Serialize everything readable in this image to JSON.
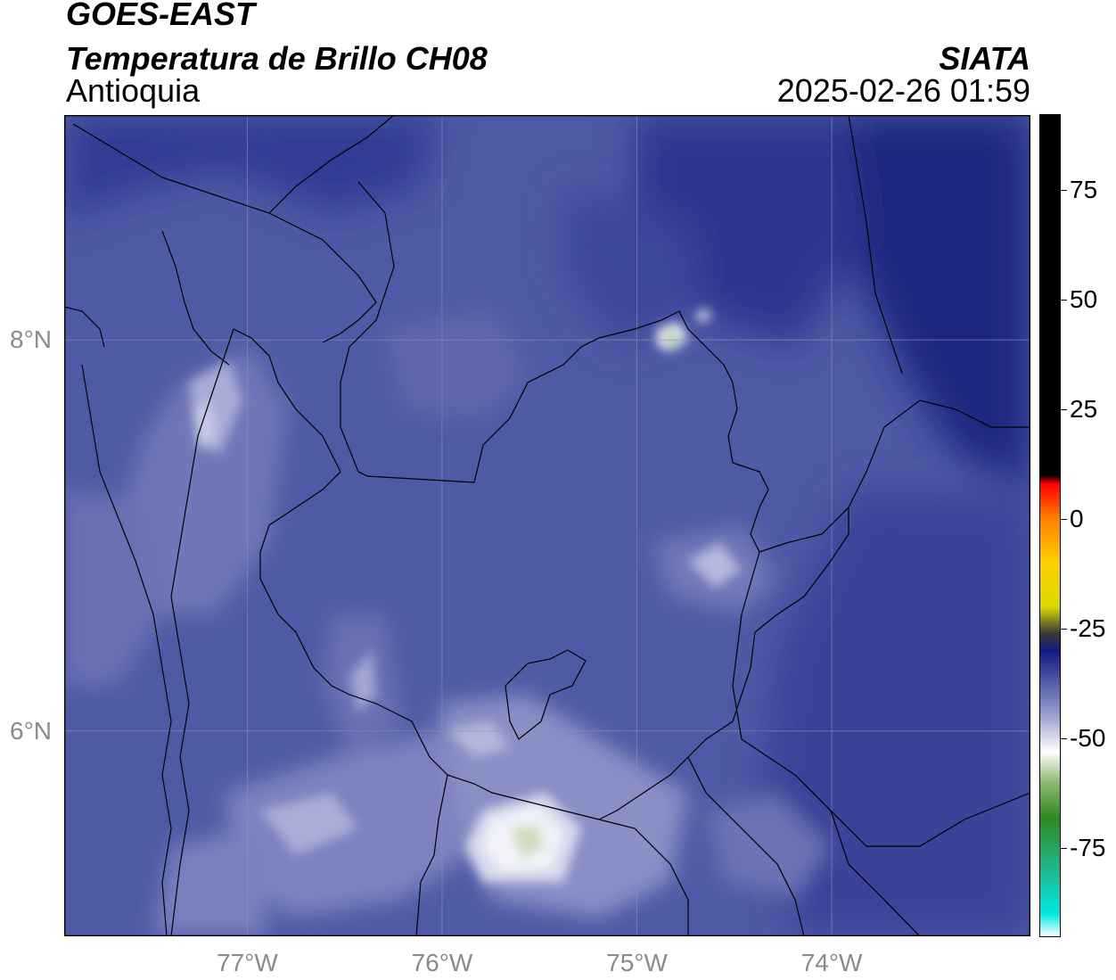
{
  "header": {
    "line1": "GOES-EAST",
    "line2": "Temperatura de Brillo CH08",
    "line3": "Antioquia",
    "org": "SIATA",
    "datetime": "2025-02-26 01:59"
  },
  "map": {
    "lon_range": [
      -77.94,
      -72.98
    ],
    "lat_range": [
      4.95,
      9.15
    ],
    "lon_ticks": [
      {
        "value": -77,
        "label": "77°W"
      },
      {
        "value": -76,
        "label": "76°W"
      },
      {
        "value": -75,
        "label": "75°W"
      },
      {
        "value": -74,
        "label": "74°W"
      }
    ],
    "lat_ticks": [
      {
        "value": 8,
        "label": "8°N"
      },
      {
        "value": 6,
        "label": "6°N"
      }
    ],
    "gridlines": true,
    "background_color": "#4f5aa6"
  },
  "colorbar": {
    "range": [
      -95,
      92
    ],
    "ticks": [
      {
        "value": 75,
        "label": "75"
      },
      {
        "value": 50,
        "label": "50"
      },
      {
        "value": 25,
        "label": "25"
      },
      {
        "value": 0,
        "label": "0"
      },
      {
        "value": -25,
        "label": "-25"
      },
      {
        "value": -50,
        "label": "-50"
      },
      {
        "value": -75,
        "label": "-75"
      }
    ],
    "stops": [
      {
        "value": -95,
        "color": "#ffffff"
      },
      {
        "value": -90,
        "color": "#00e8e0"
      },
      {
        "value": -80,
        "color": "#20b890"
      },
      {
        "value": -68,
        "color": "#2e8a20"
      },
      {
        "value": -60,
        "color": "#8fb870"
      },
      {
        "value": -53,
        "color": "#ffffff"
      },
      {
        "value": -45,
        "color": "#9da2cf"
      },
      {
        "value": -38,
        "color": "#5b63ad"
      },
      {
        "value": -30,
        "color": "#141a80"
      },
      {
        "value": -26,
        "color": "#3a3a3a"
      },
      {
        "value": -20,
        "color": "#d8d800"
      },
      {
        "value": -10,
        "color": "#ffd000"
      },
      {
        "value": 0,
        "color": "#ff8000"
      },
      {
        "value": 8,
        "color": "#ff0000"
      },
      {
        "value": 10,
        "color": "#000000"
      },
      {
        "value": 92,
        "color": "#000000"
      }
    ]
  }
}
